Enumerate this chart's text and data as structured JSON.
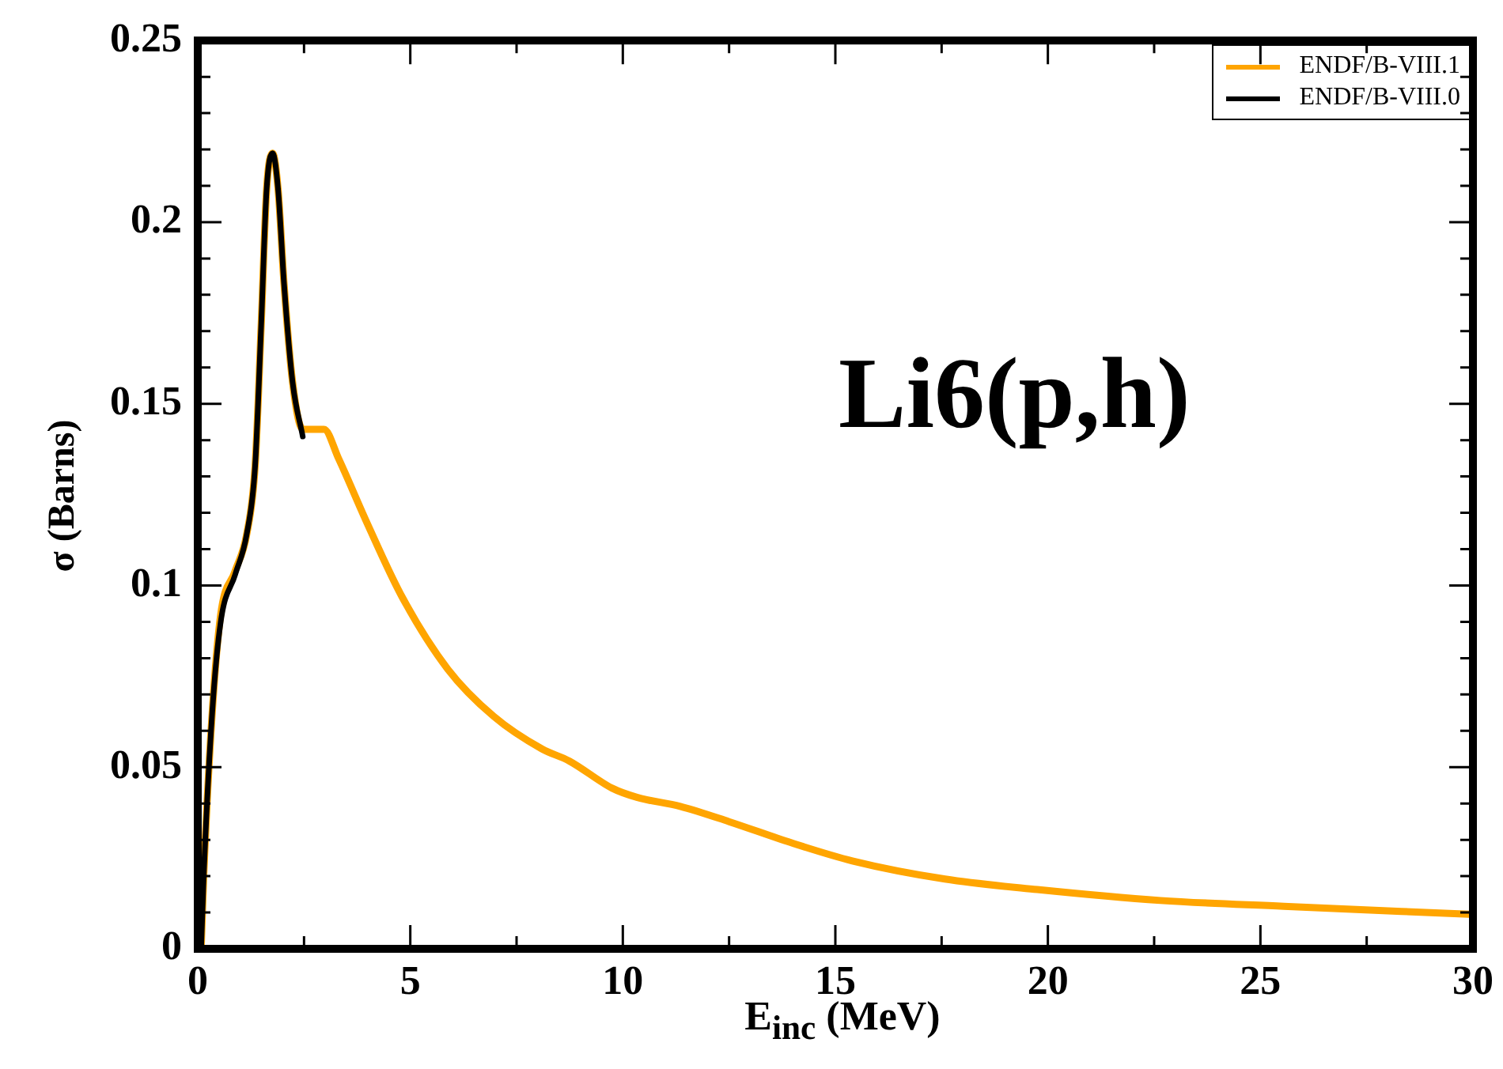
{
  "chart_data": {
    "type": "line",
    "xlabel": "E$_{inc}$ (MeV)",
    "ylabel": "σ (Barns)",
    "annotations": [
      "Li6(p,h)"
    ],
    "xlim": [
      0,
      30
    ],
    "ylim": [
      0,
      0.25
    ],
    "xticks": [
      0,
      {
        "value": 2.5,
        "label": null
      },
      5,
      {
        "value": 7.5,
        "label": null
      },
      10,
      {
        "value": 12.5,
        "label": null
      },
      15,
      {
        "value": 17.5,
        "label": null
      },
      20,
      {
        "value": 22.5,
        "label": null
      },
      25,
      {
        "value": 27.5,
        "label": null
      },
      30
    ],
    "yticks": [
      0,
      {
        "value": 0.01,
        "label": null
      },
      {
        "value": 0.02,
        "label": null
      },
      {
        "value": 0.03,
        "label": null
      },
      {
        "value": 0.04,
        "label": null
      },
      0.05,
      {
        "value": 0.06,
        "label": null
      },
      {
        "value": 0.07,
        "label": null
      },
      {
        "value": 0.08,
        "label": null
      },
      {
        "value": 0.09,
        "label": null
      },
      0.1,
      {
        "value": 0.11,
        "label": null
      },
      {
        "value": 0.12,
        "label": null
      },
      {
        "value": 0.13,
        "label": null
      },
      {
        "value": 0.14,
        "label": null
      },
      0.15,
      {
        "value": 0.16,
        "label": null
      },
      {
        "value": 0.17,
        "label": null
      },
      {
        "value": 0.18,
        "label": null
      },
      {
        "value": 0.19,
        "label": null
      },
      0.2,
      {
        "value": 0.21,
        "label": null
      },
      {
        "value": 0.22,
        "label": null
      },
      {
        "value": 0.23,
        "label": null
      },
      {
        "value": 0.24,
        "label": null
      },
      0.25
    ],
    "grid": false,
    "legend": "top right",
    "marker": "none",
    "line_style": "solid",
    "series": [
      {
        "name": "ENDF/B-VIII.1",
        "color": "#ffa500",
        "x": [
          0.08,
          0.14,
          0.34,
          0.54,
          0.88,
          1.15,
          1.35,
          1.49,
          1.62,
          1.76,
          1.89,
          2.03,
          2.23,
          2.47,
          2.64,
          2.97,
          3.31,
          3.99,
          4.8,
          5.88,
          6.96,
          8.1,
          8.74,
          9.75,
          10.33,
          11.35,
          12.5,
          13.96,
          15.4,
          17.58,
          19.75,
          22.65,
          25.55,
          29.9
        ],
        "values": [
          0,
          0.02,
          0.065,
          0.092,
          0.104,
          0.114,
          0.133,
          0.171,
          0.209,
          0.219,
          0.209,
          0.183,
          0.156,
          0.143,
          0.143,
          0.143,
          0.135,
          0.117,
          0.097,
          0.077,
          0.064,
          0.055,
          0.0517,
          0.0442,
          0.0417,
          0.0392,
          0.035,
          0.0292,
          0.0242,
          0.0192,
          0.0163,
          0.0133,
          0.0117,
          0.0095
        ]
      },
      {
        "name": "ENDF/B-VIII.0",
        "color": "#000000",
        "x": [
          0.08,
          0.14,
          0.34,
          0.54,
          0.88,
          1.15,
          1.35,
          1.49,
          1.62,
          1.76,
          1.89,
          2.03,
          2.23,
          2.47
        ],
        "values": [
          0,
          0.02,
          0.065,
          0.09,
          0.103,
          0.114,
          0.133,
          0.171,
          0.209,
          0.219,
          0.209,
          0.183,
          0.156,
          0.141
        ]
      }
    ]
  }
}
